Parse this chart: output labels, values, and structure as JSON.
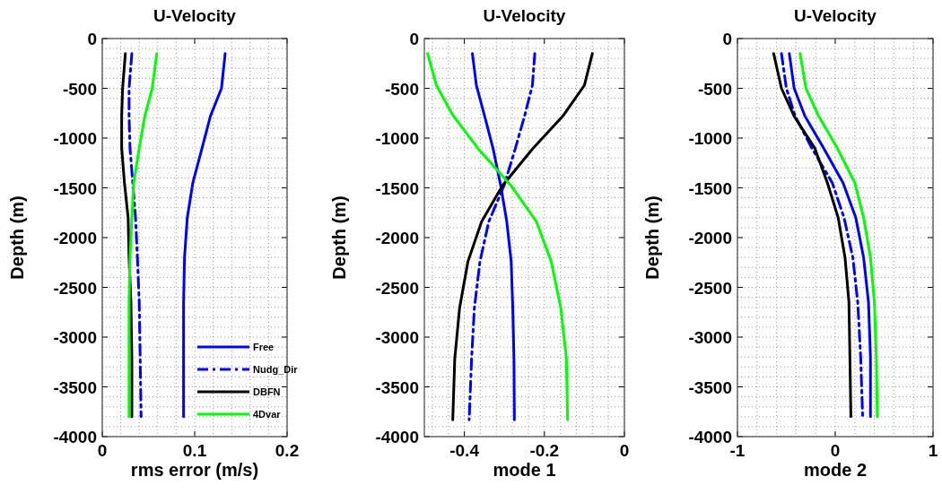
{
  "chart_data": [
    {
      "type": "line",
      "title": "U-Velocity",
      "xlabel": "rms error (m/s)",
      "ylabel": "Depth (m)",
      "xlim": [
        0,
        0.2
      ],
      "xticks": [
        0,
        0.1,
        0.2
      ],
      "ylim": [
        -4000,
        0
      ],
      "yticks": [
        -4000,
        -3500,
        -3000,
        -2500,
        -2000,
        -1500,
        -1000,
        -500,
        0
      ],
      "grid": true,
      "legend": "bottom right",
      "series": [
        {
          "name": "Free",
          "color": "#0000ff",
          "line_style": "solid",
          "x": [
            0.133,
            0.129,
            0.117,
            0.108,
            0.098,
            0.092,
            0.089,
            0.088,
            0.088,
            0.088
          ],
          "values": [
            -150,
            -500,
            -780,
            -1100,
            -1450,
            -1800,
            -2200,
            -2650,
            -3200,
            -3800
          ]
        },
        {
          "name": "Nudg_Dir",
          "color": "#0000ff",
          "line_style": "dashed",
          "x": [
            0.032,
            0.029,
            0.029,
            0.03,
            0.033,
            0.036,
            0.038,
            0.04,
            0.041,
            0.042
          ],
          "values": [
            -150,
            -500,
            -780,
            -1100,
            -1450,
            -1800,
            -2200,
            -2650,
            -3200,
            -3800
          ]
        },
        {
          "name": "DBFN",
          "color": "#000000",
          "line_style": "solid",
          "x": [
            0.025,
            0.022,
            0.021,
            0.021,
            0.024,
            0.028,
            0.029,
            0.031,
            0.032,
            0.032
          ],
          "values": [
            -150,
            -500,
            -780,
            -1100,
            -1450,
            -1800,
            -2200,
            -2650,
            -3200,
            -3800
          ]
        },
        {
          "name": "4Dvar",
          "color": "#00ff00",
          "line_style": "solid",
          "x": [
            0.059,
            0.054,
            0.046,
            0.04,
            0.034,
            0.032,
            0.03,
            0.029,
            0.029,
            0.029
          ],
          "values": [
            -150,
            -500,
            -780,
            -1100,
            -1450,
            -1800,
            -2200,
            -2650,
            -3200,
            -3800
          ]
        }
      ]
    },
    {
      "type": "line",
      "title": "U-Velocity",
      "xlabel": "mode 1",
      "ylabel": "Depth (m)",
      "xlim": [
        -0.5,
        0
      ],
      "xticks": [
        -0.4,
        -0.2,
        0
      ],
      "ylim": [
        -4000,
        0
      ],
      "yticks": [
        -4000,
        -3500,
        -3000,
        -2500,
        -2000,
        -1500,
        -1000,
        -500,
        0
      ],
      "grid": true,
      "series": [
        {
          "color": "#0000ff",
          "line_style": "solid",
          "x": [
            -0.38,
            -0.37,
            -0.35,
            -0.328,
            -0.309,
            -0.294,
            -0.283,
            -0.279,
            -0.276,
            -0.275
          ],
          "values": [
            -150,
            -470,
            -770,
            -1110,
            -1480,
            -1840,
            -2240,
            -2710,
            -3220,
            -3830
          ]
        },
        {
          "color": "#0000ff",
          "line_style": "dashed",
          "x": [
            -0.224,
            -0.23,
            -0.249,
            -0.273,
            -0.301,
            -0.339,
            -0.361,
            -0.375,
            -0.382,
            -0.388
          ],
          "values": [
            -150,
            -470,
            -770,
            -1110,
            -1480,
            -1840,
            -2240,
            -2710,
            -3220,
            -3830
          ]
        },
        {
          "color": "#000000",
          "line_style": "solid",
          "x": [
            -0.08,
            -0.1,
            -0.152,
            -0.23,
            -0.305,
            -0.357,
            -0.391,
            -0.412,
            -0.424,
            -0.429
          ],
          "values": [
            -150,
            -470,
            -770,
            -1110,
            -1480,
            -1840,
            -2240,
            -2710,
            -3220,
            -3830
          ]
        },
        {
          "color": "#00ff00",
          "line_style": "solid",
          "x": [
            -0.492,
            -0.47,
            -0.429,
            -0.365,
            -0.283,
            -0.22,
            -0.183,
            -0.159,
            -0.145,
            -0.142
          ],
          "values": [
            -150,
            -470,
            -770,
            -1110,
            -1480,
            -1840,
            -2240,
            -2710,
            -3220,
            -3830
          ]
        }
      ]
    },
    {
      "type": "line",
      "title": "U-Velocity",
      "xlabel": "mode 2",
      "ylabel": "Depth (m)",
      "xlim": [
        -1,
        1
      ],
      "xticks": [
        -1,
        0,
        1
      ],
      "ylim": [
        -4000,
        0
      ],
      "yticks": [
        -4000,
        -3500,
        -3000,
        -2500,
        -2000,
        -1500,
        -1000,
        -500,
        0
      ],
      "grid": true,
      "series": [
        {
          "color": "#0000ff",
          "line_style": "solid",
          "x": [
            -0.47,
            -0.42,
            -0.31,
            -0.12,
            0.08,
            0.21,
            0.29,
            0.34,
            0.36,
            0.36
          ],
          "values": [
            -150,
            -500,
            -780,
            -1100,
            -1450,
            -1800,
            -2200,
            -2650,
            -3200,
            -3800
          ]
        },
        {
          "color": "#0000ff",
          "line_style": "dashed",
          "x": [
            -0.55,
            -0.5,
            -0.41,
            -0.24,
            -0.03,
            0.09,
            0.18,
            0.23,
            0.26,
            0.28
          ],
          "values": [
            -150,
            -500,
            -780,
            -1100,
            -1450,
            -1800,
            -2200,
            -2650,
            -3200,
            -3800
          ]
        },
        {
          "color": "#000000",
          "line_style": "solid",
          "x": [
            -0.63,
            -0.55,
            -0.42,
            -0.21,
            -0.08,
            0.03,
            0.1,
            0.14,
            0.15,
            0.16
          ],
          "values": [
            -150,
            -500,
            -780,
            -1100,
            -1450,
            -1800,
            -2200,
            -2650,
            -3200,
            -3800
          ]
        },
        {
          "color": "#00ff00",
          "line_style": "solid",
          "x": [
            -0.36,
            -0.3,
            -0.17,
            0.02,
            0.2,
            0.29,
            0.36,
            0.4,
            0.42,
            0.43
          ],
          "values": [
            -150,
            -500,
            -780,
            -1100,
            -1450,
            -1800,
            -2200,
            -2650,
            -3200,
            -3800
          ]
        }
      ]
    }
  ]
}
